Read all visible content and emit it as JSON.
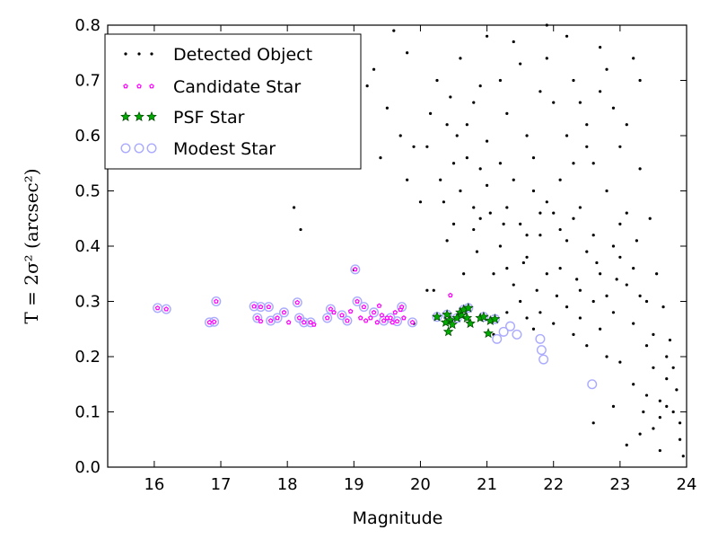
{
  "chart_data": {
    "type": "scatter",
    "xlabel": "Magnitude",
    "ylabel": "T = 2σ² (arcsec²)",
    "xlim": [
      15.3,
      24.0
    ],
    "ylim": [
      0.0,
      0.8
    ],
    "xticks": [
      "16",
      "17",
      "18",
      "19",
      "20",
      "21",
      "22",
      "23",
      "24"
    ],
    "yticks": [
      "0.0",
      "0.1",
      "0.2",
      "0.3",
      "0.4",
      "0.5",
      "0.6",
      "0.7",
      "0.8"
    ],
    "grid": false,
    "legend_position": "top-left",
    "series": [
      {
        "name": "Detected Object",
        "marker": "dot",
        "color": "#000000",
        "points": [
          [
            18.1,
            0.47
          ],
          [
            18.2,
            0.43
          ],
          [
            19.0,
            0.357
          ],
          [
            19.6,
            0.79
          ],
          [
            19.9,
            0.26
          ],
          [
            20.1,
            0.32
          ],
          [
            20.2,
            0.32
          ],
          [
            20.0,
            0.48
          ],
          [
            20.1,
            0.58
          ],
          [
            20.3,
            0.52
          ],
          [
            20.35,
            0.48
          ],
          [
            20.4,
            0.62
          ],
          [
            20.5,
            0.55
          ],
          [
            20.6,
            0.5
          ],
          [
            20.7,
            0.56
          ],
          [
            20.8,
            0.43
          ],
          [
            20.9,
            0.45
          ],
          [
            21.0,
            0.59
          ],
          [
            21.1,
            0.35
          ],
          [
            21.2,
            0.4
          ],
          [
            21.3,
            0.47
          ],
          [
            21.4,
            0.52
          ],
          [
            21.5,
            0.44
          ],
          [
            21.6,
            0.38
          ],
          [
            21.7,
            0.5
          ],
          [
            21.8,
            0.42
          ],
          [
            21.9,
            0.48
          ],
          [
            22.0,
            0.46
          ],
          [
            22.1,
            0.36
          ],
          [
            22.2,
            0.41
          ],
          [
            22.3,
            0.45
          ],
          [
            22.4,
            0.32
          ],
          [
            22.5,
            0.39
          ],
          [
            22.6,
            0.3
          ],
          [
            22.7,
            0.35
          ],
          [
            22.8,
            0.31
          ],
          [
            22.9,
            0.28
          ],
          [
            23.0,
            0.38
          ],
          [
            23.1,
            0.33
          ],
          [
            23.2,
            0.26
          ],
          [
            23.3,
            0.31
          ],
          [
            23.4,
            0.22
          ],
          [
            23.5,
            0.18
          ],
          [
            23.6,
            0.12
          ],
          [
            23.7,
            0.16
          ],
          [
            23.8,
            0.1
          ],
          [
            23.9,
            0.05
          ],
          [
            23.95,
            0.02
          ],
          [
            22.5,
            0.58
          ],
          [
            22.4,
            0.66
          ],
          [
            22.3,
            0.7
          ],
          [
            21.9,
            0.74
          ],
          [
            21.8,
            0.68
          ],
          [
            21.6,
            0.6
          ],
          [
            21.5,
            0.73
          ],
          [
            21.3,
            0.64
          ],
          [
            21.2,
            0.7
          ],
          [
            21.0,
            0.78
          ],
          [
            20.9,
            0.69
          ],
          [
            20.8,
            0.66
          ],
          [
            20.6,
            0.74
          ],
          [
            20.7,
            0.62
          ],
          [
            19.3,
            0.72
          ],
          [
            19.5,
            0.65
          ],
          [
            19.7,
            0.6
          ],
          [
            19.8,
            0.52
          ],
          [
            23.2,
            0.74
          ],
          [
            22.7,
            0.76
          ],
          [
            22.9,
            0.65
          ],
          [
            23.0,
            0.58
          ],
          [
            23.3,
            0.54
          ],
          [
            23.1,
            0.46
          ],
          [
            22.8,
            0.5
          ],
          [
            22.6,
            0.55
          ],
          [
            22.2,
            0.6
          ],
          [
            22.0,
            0.66
          ],
          [
            21.7,
            0.56
          ],
          [
            21.4,
            0.33
          ],
          [
            21.5,
            0.3
          ],
          [
            21.6,
            0.27
          ],
          [
            21.7,
            0.25
          ],
          [
            21.8,
            0.28
          ],
          [
            22.0,
            0.26
          ],
          [
            22.2,
            0.29
          ],
          [
            22.3,
            0.24
          ],
          [
            22.4,
            0.27
          ],
          [
            22.5,
            0.22
          ],
          [
            22.7,
            0.25
          ],
          [
            22.8,
            0.2
          ],
          [
            23.0,
            0.19
          ],
          [
            23.2,
            0.15
          ],
          [
            23.4,
            0.13
          ],
          [
            23.6,
            0.09
          ],
          [
            23.3,
            0.06
          ],
          [
            22.6,
            0.08
          ],
          [
            22.9,
            0.11
          ],
          [
            23.1,
            0.04
          ],
          [
            23.6,
            0.03
          ],
          [
            21.1,
            0.24
          ],
          [
            21.3,
            0.28
          ],
          [
            21.9,
            0.35
          ],
          [
            22.1,
            0.43
          ],
          [
            22.4,
            0.47
          ],
          [
            22.6,
            0.42
          ],
          [
            22.9,
            0.4
          ],
          [
            23.0,
            0.44
          ],
          [
            23.2,
            0.36
          ],
          [
            23.4,
            0.3
          ],
          [
            23.5,
            0.24
          ],
          [
            23.7,
            0.2
          ],
          [
            23.85,
            0.14
          ],
          [
            23.9,
            0.08
          ],
          [
            21.2,
            0.55
          ],
          [
            21.0,
            0.51
          ],
          [
            20.9,
            0.54
          ],
          [
            20.8,
            0.47
          ],
          [
            20.5,
            0.44
          ],
          [
            20.4,
            0.41
          ],
          [
            21.3,
            0.36
          ],
          [
            21.6,
            0.42
          ],
          [
            21.8,
            0.46
          ],
          [
            22.1,
            0.52
          ],
          [
            22.3,
            0.55
          ],
          [
            22.5,
            0.62
          ],
          [
            22.7,
            0.68
          ],
          [
            22.8,
            0.72
          ],
          [
            22.2,
            0.78
          ],
          [
            21.9,
            0.8
          ],
          [
            21.4,
            0.77
          ],
          [
            23.1,
            0.62
          ],
          [
            23.3,
            0.7
          ],
          [
            23.25,
            0.41
          ],
          [
            22.95,
            0.34
          ],
          [
            22.65,
            0.37
          ],
          [
            22.35,
            0.34
          ],
          [
            22.05,
            0.31
          ],
          [
            21.75,
            0.32
          ],
          [
            21.55,
            0.37
          ],
          [
            21.25,
            0.44
          ],
          [
            21.05,
            0.46
          ],
          [
            20.85,
            0.39
          ],
          [
            20.65,
            0.35
          ],
          [
            20.55,
            0.6
          ],
          [
            20.45,
            0.67
          ],
          [
            20.25,
            0.7
          ],
          [
            20.15,
            0.64
          ],
          [
            19.9,
            0.58
          ],
          [
            19.4,
            0.56
          ],
          [
            19.2,
            0.69
          ],
          [
            19.8,
            0.75
          ],
          [
            23.45,
            0.45
          ],
          [
            23.55,
            0.35
          ],
          [
            23.65,
            0.29
          ],
          [
            23.75,
            0.23
          ],
          [
            23.8,
            0.18
          ],
          [
            23.7,
            0.11
          ],
          [
            23.5,
            0.07
          ],
          [
            23.35,
            0.1
          ]
        ]
      },
      {
        "name": "Candidate Star",
        "marker": "pentagon",
        "color": "#ff00ff",
        "points": [
          [
            16.05,
            0.288
          ],
          [
            16.18,
            0.286
          ],
          [
            16.83,
            0.262
          ],
          [
            16.93,
            0.3
          ],
          [
            16.9,
            0.263
          ],
          [
            17.5,
            0.291
          ],
          [
            17.6,
            0.29
          ],
          [
            17.55,
            0.27
          ],
          [
            17.6,
            0.264
          ],
          [
            17.72,
            0.29
          ],
          [
            17.75,
            0.265
          ],
          [
            17.85,
            0.27
          ],
          [
            17.95,
            0.28
          ],
          [
            18.02,
            0.262
          ],
          [
            18.15,
            0.298
          ],
          [
            18.18,
            0.27
          ],
          [
            18.25,
            0.262
          ],
          [
            18.35,
            0.262
          ],
          [
            18.4,
            0.258
          ],
          [
            18.6,
            0.27
          ],
          [
            18.65,
            0.286
          ],
          [
            18.7,
            0.28
          ],
          [
            18.82,
            0.275
          ],
          [
            18.9,
            0.265
          ],
          [
            18.95,
            0.282
          ],
          [
            19.05,
            0.3
          ],
          [
            19.1,
            0.27
          ],
          [
            19.15,
            0.29
          ],
          [
            19.18,
            0.265
          ],
          [
            19.25,
            0.27
          ],
          [
            19.3,
            0.28
          ],
          [
            19.35,
            0.262
          ],
          [
            19.38,
            0.292
          ],
          [
            19.42,
            0.275
          ],
          [
            19.45,
            0.265
          ],
          [
            19.5,
            0.27
          ],
          [
            19.55,
            0.27
          ],
          [
            19.58,
            0.262
          ],
          [
            19.62,
            0.28
          ],
          [
            19.65,
            0.264
          ],
          [
            19.7,
            0.285
          ],
          [
            19.72,
            0.29
          ],
          [
            19.75,
            0.27
          ],
          [
            19.88,
            0.262
          ],
          [
            19.02,
            0.358
          ],
          [
            20.45,
            0.311
          ]
        ]
      },
      {
        "name": "PSF Star",
        "marker": "star",
        "color": "#00aa00",
        "points": [
          [
            20.25,
            0.272
          ],
          [
            20.4,
            0.276
          ],
          [
            20.45,
            0.266
          ],
          [
            20.48,
            0.258
          ],
          [
            20.42,
            0.245
          ],
          [
            20.6,
            0.28
          ],
          [
            20.55,
            0.27
          ],
          [
            20.62,
            0.275
          ],
          [
            20.65,
            0.285
          ],
          [
            20.7,
            0.27
          ],
          [
            20.72,
            0.288
          ],
          [
            20.75,
            0.26
          ],
          [
            20.9,
            0.27
          ],
          [
            20.95,
            0.272
          ],
          [
            21.05,
            0.265
          ],
          [
            21.12,
            0.268
          ],
          [
            21.02,
            0.242
          ],
          [
            20.38,
            0.262
          ]
        ]
      },
      {
        "name": "Modest Star",
        "marker": "circle",
        "color": "#aaaaff",
        "points": [
          [
            16.05,
            0.288
          ],
          [
            16.18,
            0.286
          ],
          [
            16.83,
            0.262
          ],
          [
            16.93,
            0.3
          ],
          [
            16.9,
            0.263
          ],
          [
            17.5,
            0.291
          ],
          [
            17.6,
            0.29
          ],
          [
            17.55,
            0.27
          ],
          [
            17.72,
            0.29
          ],
          [
            17.75,
            0.265
          ],
          [
            17.85,
            0.27
          ],
          [
            17.95,
            0.28
          ],
          [
            18.15,
            0.298
          ],
          [
            18.18,
            0.27
          ],
          [
            18.25,
            0.262
          ],
          [
            18.35,
            0.262
          ],
          [
            18.6,
            0.27
          ],
          [
            18.65,
            0.286
          ],
          [
            18.82,
            0.275
          ],
          [
            18.9,
            0.265
          ],
          [
            19.05,
            0.3
          ],
          [
            19.15,
            0.29
          ],
          [
            19.3,
            0.28
          ],
          [
            19.45,
            0.265
          ],
          [
            19.55,
            0.27
          ],
          [
            19.65,
            0.264
          ],
          [
            19.72,
            0.29
          ],
          [
            19.88,
            0.262
          ],
          [
            19.02,
            0.358
          ],
          [
            20.25,
            0.272
          ],
          [
            20.4,
            0.276
          ],
          [
            20.55,
            0.27
          ],
          [
            20.65,
            0.285
          ],
          [
            20.72,
            0.288
          ],
          [
            20.95,
            0.272
          ],
          [
            21.12,
            0.268
          ],
          [
            21.25,
            0.245
          ],
          [
            21.35,
            0.255
          ],
          [
            21.15,
            0.232
          ],
          [
            21.45,
            0.24
          ],
          [
            21.8,
            0.232
          ],
          [
            21.82,
            0.212
          ],
          [
            21.85,
            0.195
          ],
          [
            22.58,
            0.15
          ]
        ]
      }
    ]
  }
}
